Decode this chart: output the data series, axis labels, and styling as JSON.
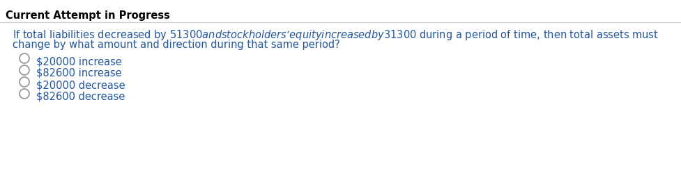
{
  "header": "Current Attempt in Progress",
  "header_color": "#000000",
  "header_fontsize": 10.5,
  "separator_color": "#cccccc",
  "question_line1": "If total liabilities decreased by $51300 and stockholders’ equity increased by $31300 during a period of time, then total assets must",
  "question_line2": "change by what amount and direction during that same period?",
  "question_color": "#2255a4",
  "question_fontsize": 10.5,
  "options": [
    "$20000 increase",
    "$82600 increase",
    "$20000 decrease",
    "$82600 decrease"
  ],
  "option_color": "#2255a4",
  "option_fontsize": 10.5,
  "circle_color": "#999999",
  "background_color": "#ffffff"
}
